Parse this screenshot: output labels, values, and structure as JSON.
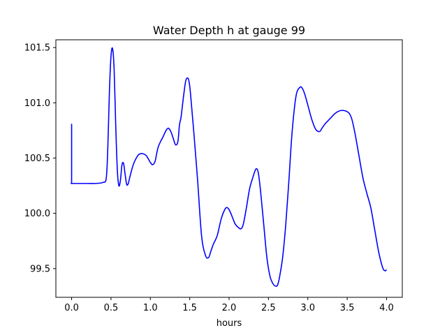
{
  "chart_data": {
    "type": "line",
    "title": "Water Depth h at gauge 99",
    "xlabel": "hours",
    "ylabel": "",
    "xlim": [
      -0.2,
      4.2
    ],
    "ylim": [
      99.24,
      101.57
    ],
    "xticks": [
      0.0,
      0.5,
      1.0,
      1.5,
      2.0,
      2.5,
      3.0,
      3.5,
      4.0
    ],
    "xtick_labels": [
      "0.0",
      "0.5",
      "1.0",
      "1.5",
      "2.0",
      "2.5",
      "3.0",
      "3.5",
      "4.0"
    ],
    "yticks": [
      99.5,
      100.0,
      100.5,
      101.0,
      101.5
    ],
    "ytick_labels": [
      "99.5",
      "100.0",
      "100.5",
      "101.0",
      "101.5"
    ],
    "grid": false,
    "series": [
      {
        "color": "#0000ff",
        "x": [
          0.0,
          0.0,
          0.0,
          0.1,
          0.2,
          0.3,
          0.4,
          0.44,
          0.46,
          0.48,
          0.5,
          0.52,
          0.54,
          0.56,
          0.58,
          0.6,
          0.62,
          0.64,
          0.66,
          0.68,
          0.7,
          0.72,
          0.74,
          0.77,
          0.8,
          0.85,
          0.9,
          0.95,
          1.0,
          1.03,
          1.06,
          1.08,
          1.1,
          1.13,
          1.16,
          1.2,
          1.23,
          1.26,
          1.29,
          1.32,
          1.35,
          1.37,
          1.39,
          1.42,
          1.45,
          1.48,
          1.5,
          1.52,
          1.55,
          1.6,
          1.65,
          1.7,
          1.74,
          1.77,
          1.8,
          1.85,
          1.9,
          1.95,
          1.98,
          2.01,
          2.05,
          2.08,
          2.12,
          2.15,
          2.18,
          2.22,
          2.26,
          2.3,
          2.34,
          2.37,
          2.4,
          2.44,
          2.48,
          2.52,
          2.56,
          2.6,
          2.62,
          2.64,
          2.68,
          2.72,
          2.76,
          2.8,
          2.85,
          2.9,
          2.93,
          2.96,
          3.0,
          3.05,
          3.1,
          3.15,
          3.18,
          3.22,
          3.26,
          3.3,
          3.34,
          3.38,
          3.42,
          3.46,
          3.5,
          3.53,
          3.56,
          3.6,
          3.65,
          3.7,
          3.75,
          3.8,
          3.85,
          3.9,
          3.95,
          3.98,
          4.0
        ],
        "y": [
          100.81,
          100.27,
          100.27,
          100.27,
          100.27,
          100.27,
          100.28,
          100.32,
          100.6,
          101.1,
          101.42,
          101.49,
          101.3,
          100.8,
          100.4,
          100.25,
          100.3,
          100.44,
          100.45,
          100.35,
          100.26,
          100.27,
          100.33,
          100.41,
          100.47,
          100.53,
          100.54,
          100.52,
          100.46,
          100.44,
          100.47,
          100.54,
          100.6,
          100.65,
          100.69,
          100.75,
          100.77,
          100.74,
          100.68,
          100.62,
          100.65,
          100.8,
          100.87,
          101.05,
          101.2,
          101.22,
          101.15,
          101.0,
          100.75,
          100.3,
          99.8,
          99.62,
          99.6,
          99.66,
          99.72,
          99.8,
          99.95,
          100.04,
          100.05,
          100.02,
          99.95,
          99.9,
          99.87,
          99.86,
          99.9,
          100.05,
          100.22,
          100.32,
          100.4,
          100.37,
          100.2,
          99.9,
          99.6,
          99.43,
          99.36,
          99.34,
          99.36,
          99.42,
          99.6,
          99.9,
          100.3,
          100.73,
          101.06,
          101.14,
          101.13,
          101.08,
          100.98,
          100.85,
          100.76,
          100.74,
          100.77,
          100.81,
          100.84,
          100.87,
          100.9,
          100.92,
          100.93,
          100.93,
          100.92,
          100.9,
          100.85,
          100.72,
          100.52,
          100.32,
          100.18,
          100.05,
          99.85,
          99.65,
          99.51,
          99.48,
          99.49
        ]
      }
    ]
  }
}
